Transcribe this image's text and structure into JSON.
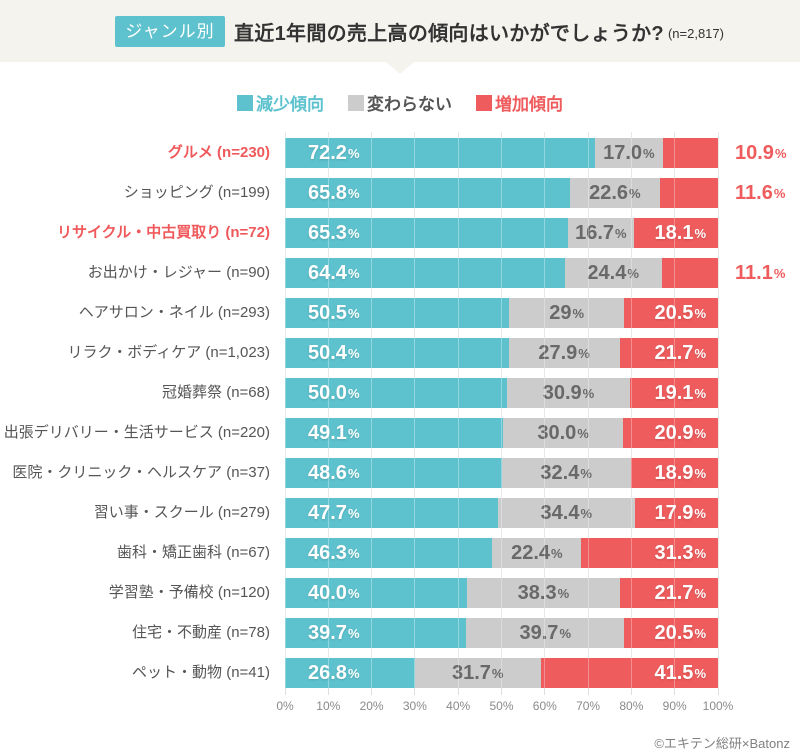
{
  "header": {
    "badge": "ジャンル別",
    "title": "直近1年間の売上高の傾向はいかがでしょうか?",
    "sample": "(n=2,817)"
  },
  "legend": [
    {
      "name": "decrease",
      "label": "減少傾向",
      "color": "#5ec2ce",
      "text_color": "#5ec2ce"
    },
    {
      "name": "no-change",
      "label": "変わらない",
      "color": "#cccccc",
      "text_color": "#555555"
    },
    {
      "name": "increase",
      "label": "増加傾向",
      "color": "#ef5c5d",
      "text_color": "#ef5c5d"
    }
  ],
  "chart_data": {
    "type": "bar",
    "stacked": true,
    "orientation": "horizontal",
    "unit": "%",
    "xlim": [
      0,
      100
    ],
    "grid": true,
    "series_names": [
      "減少傾向",
      "変わらない",
      "増加傾向"
    ],
    "x_axis_ticks": [
      "0%",
      "10%",
      "20%",
      "30%",
      "40%",
      "50%",
      "60%",
      "70%",
      "80%",
      "90%",
      "100%"
    ],
    "rows": [
      {
        "category": "グルメ (n=230)",
        "highlight": true,
        "values": [
          72.2,
          17.0,
          10.9
        ],
        "labels": [
          "72.2",
          "17.0",
          "10.9"
        ],
        "increase_label_outside": true
      },
      {
        "category": "ショッピング (n=199)",
        "highlight": false,
        "values": [
          65.8,
          22.6,
          11.6
        ],
        "labels": [
          "65.8",
          "22.6",
          "11.6"
        ],
        "increase_label_outside": true
      },
      {
        "category": "リサイクル・中古買取り (n=72)",
        "highlight": true,
        "values": [
          65.3,
          16.7,
          18.1
        ],
        "labels": [
          "65.3",
          "16.7",
          "18.1"
        ],
        "increase_label_outside": false
      },
      {
        "category": "お出かけ・レジャー (n=90)",
        "highlight": false,
        "values": [
          64.4,
          24.4,
          11.1
        ],
        "labels": [
          "64.4",
          "24.4",
          "11.1"
        ],
        "increase_label_outside": true
      },
      {
        "category": "ヘアサロン・ネイル (n=293)",
        "highlight": false,
        "values": [
          50.5,
          29.0,
          20.5
        ],
        "labels": [
          "50.5",
          "29",
          "20.5"
        ],
        "increase_label_outside": false
      },
      {
        "category": "リラク・ボディケア (n=1,023)",
        "highlight": false,
        "values": [
          50.4,
          27.9,
          21.7
        ],
        "labels": [
          "50.4",
          "27.9",
          "21.7"
        ],
        "increase_label_outside": false
      },
      {
        "category": "冠婚葬祭 (n=68)",
        "highlight": false,
        "values": [
          50.0,
          30.9,
          19.1
        ],
        "labels": [
          "50.0",
          "30.9",
          "19.1"
        ],
        "increase_label_outside": false
      },
      {
        "category": "出張デリバリー・生活サービス (n=220)",
        "highlight": false,
        "values": [
          49.1,
          30.0,
          20.9
        ],
        "labels": [
          "49.1",
          "30.0",
          "20.9"
        ],
        "increase_label_outside": false
      },
      {
        "category": "医院・クリニック・ヘルスケア (n=37)",
        "highlight": false,
        "values": [
          48.6,
          32.4,
          18.9
        ],
        "labels": [
          "48.6",
          "32.4",
          "18.9"
        ],
        "increase_label_outside": false
      },
      {
        "category": "習い事・スクール (n=279)",
        "highlight": false,
        "values": [
          47.7,
          34.4,
          17.9
        ],
        "labels": [
          "47.7",
          "34.4",
          "17.9"
        ],
        "increase_label_outside": false
      },
      {
        "category": "歯科・矯正歯科 (n=67)",
        "highlight": false,
        "values": [
          46.3,
          22.4,
          31.3
        ],
        "labels": [
          "46.3",
          "22.4",
          "31.3"
        ],
        "increase_label_outside": false
      },
      {
        "category": "学習塾・予備校 (n=120)",
        "highlight": false,
        "values": [
          40.0,
          38.3,
          21.7
        ],
        "labels": [
          "40.0",
          "38.3",
          "21.7"
        ],
        "increase_label_outside": false
      },
      {
        "category": "住宅・不動産 (n=78)",
        "highlight": false,
        "values": [
          39.7,
          39.7,
          20.5
        ],
        "labels": [
          "39.7",
          "39.7",
          "20.5"
        ],
        "increase_label_outside": false
      },
      {
        "category": "ペット・動物 (n=41)",
        "highlight": false,
        "values": [
          26.8,
          31.7,
          41.5
        ],
        "labels": [
          "26.8",
          "31.7",
          "41.5"
        ],
        "increase_label_outside": false
      }
    ]
  },
  "colors": {
    "decrease": "#5ec2ce",
    "no_change": "#cccccc",
    "increase": "#ef5c5d",
    "header_band": "#f5f3ed",
    "grid_line": "#dedede",
    "highlight_text": "#f0595b"
  },
  "footer": {
    "credit": "©エキテン総研×Batonz"
  }
}
